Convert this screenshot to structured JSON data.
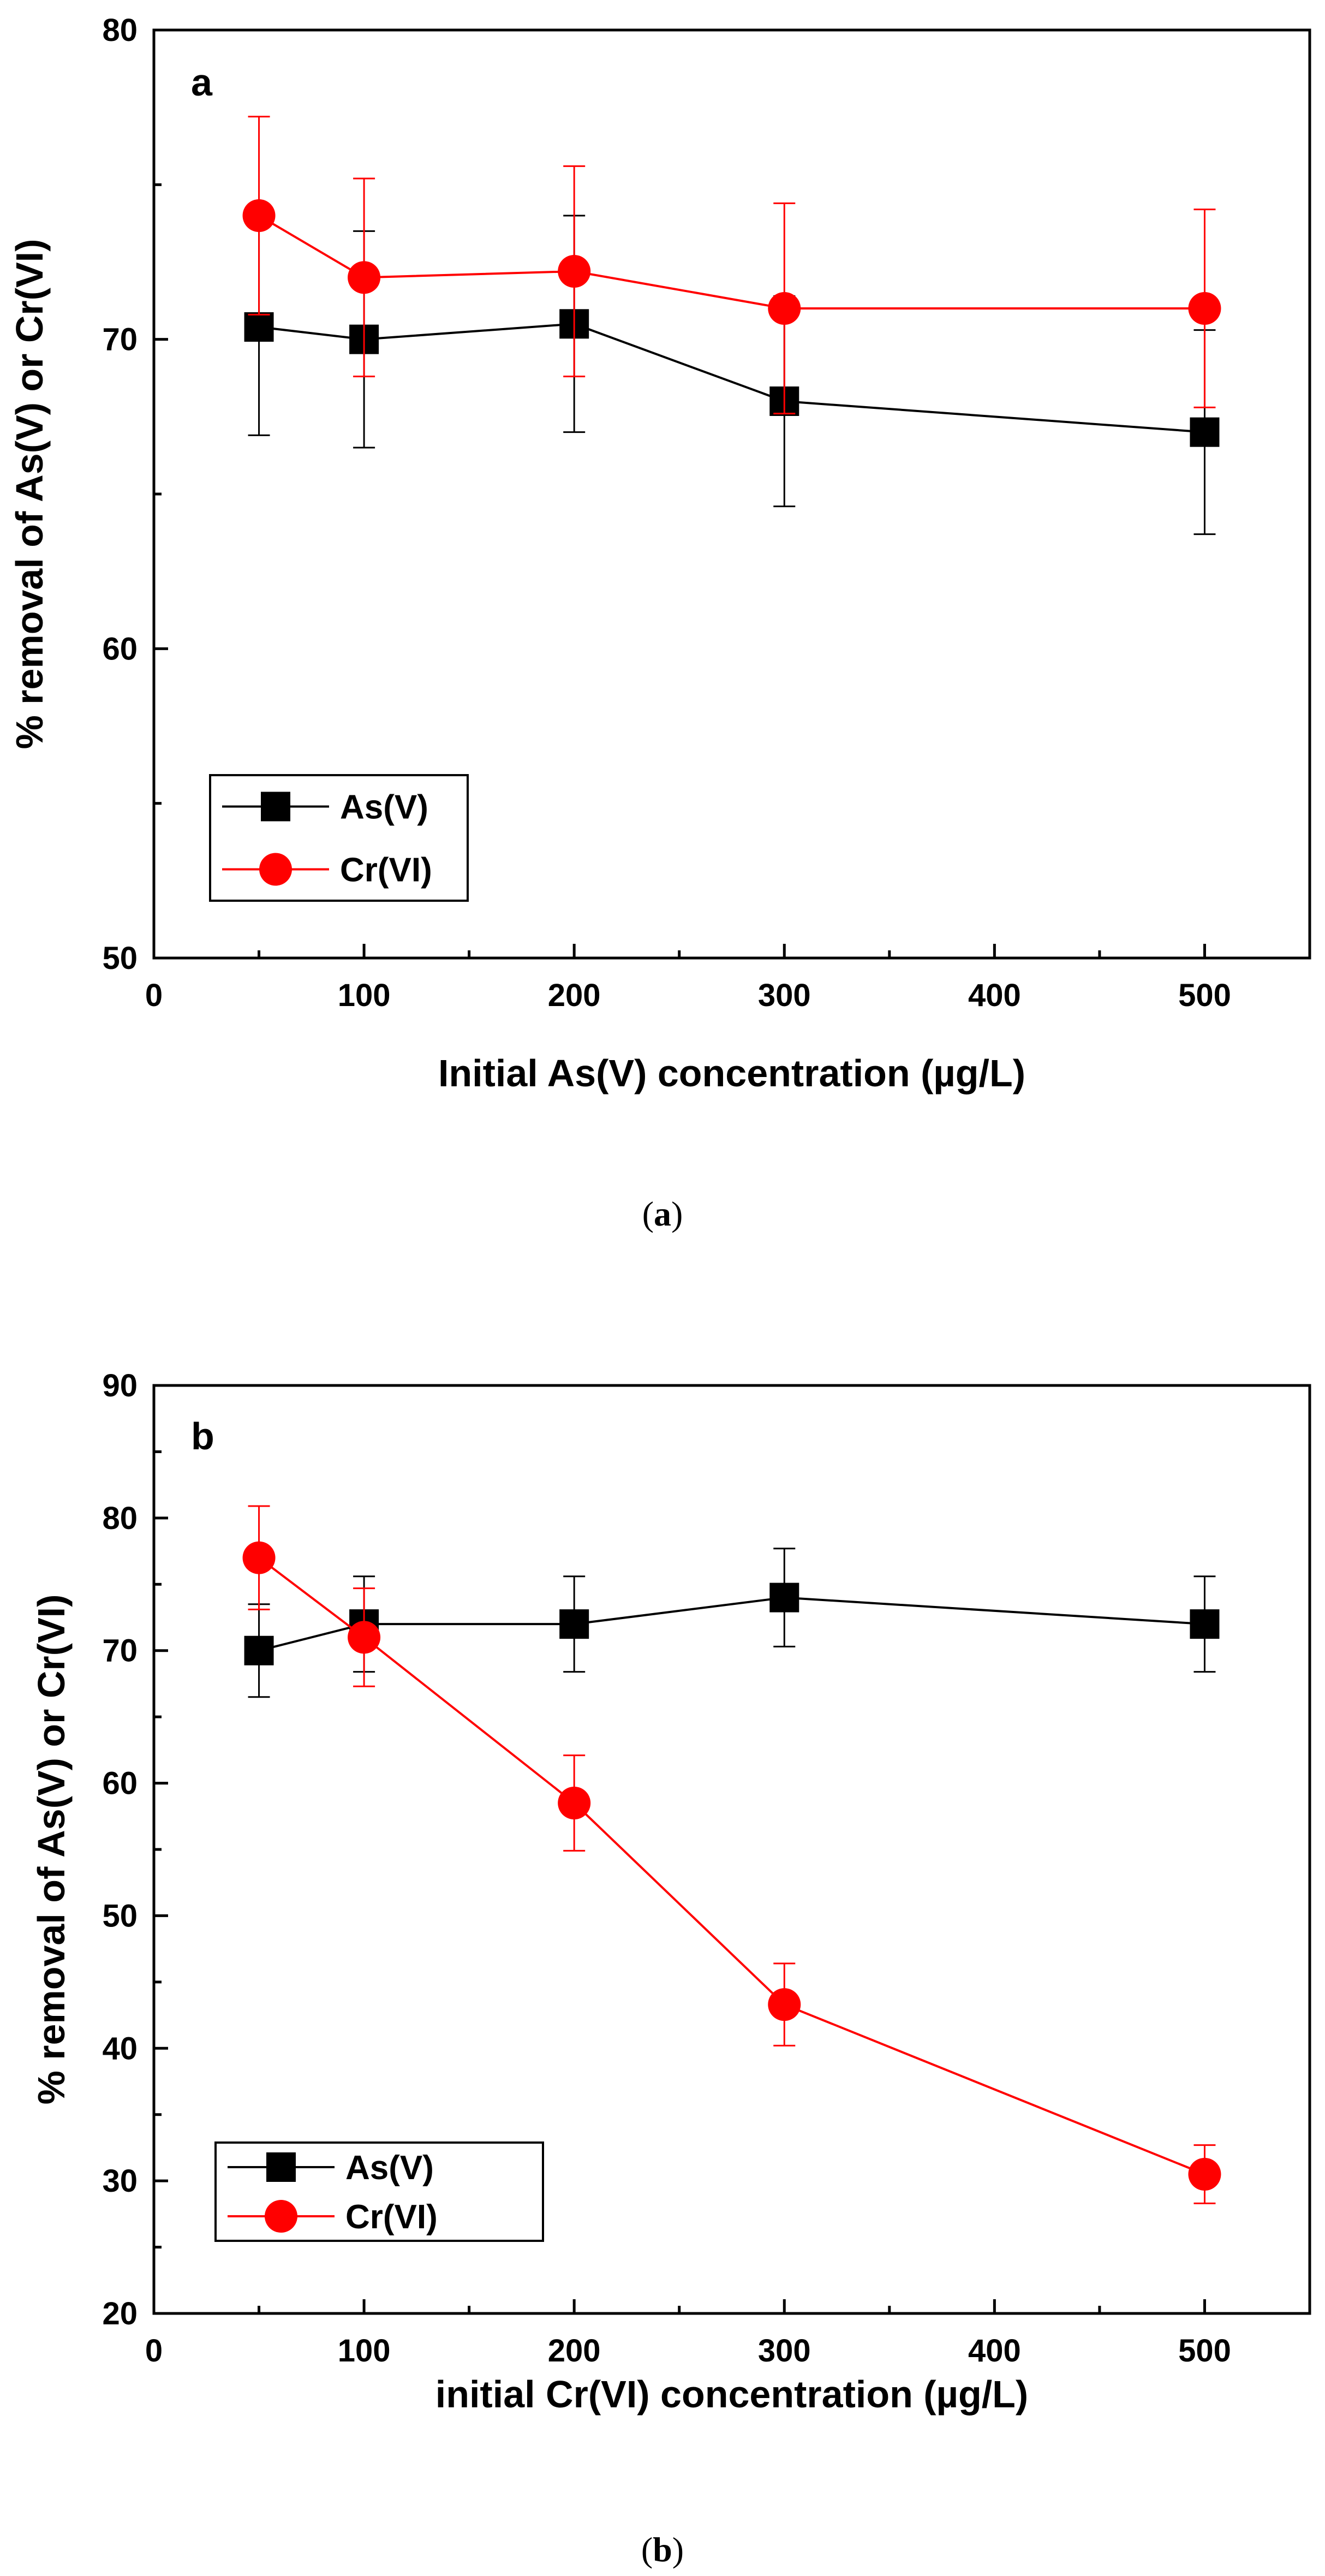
{
  "chart_data": [
    {
      "type": "line",
      "panel_label": "a",
      "caption_letter": "a",
      "xlabel": "Initial As(V) concentration (µg/L)",
      "ylabel": "% removal of As(V)  or Cr(VI)",
      "xlim": [
        0,
        550
      ],
      "ylim": [
        50,
        80
      ],
      "xticks": [
        0,
        100,
        200,
        300,
        400,
        500
      ],
      "yticks": [
        50,
        60,
        70,
        80
      ],
      "x_minor_step": 50,
      "y_minor_step": 5,
      "legend_position": "bottom-left",
      "grid": false,
      "series": [
        {
          "name": "As(V)",
          "color": "#000000",
          "marker": "square",
          "x": [
            50,
            100,
            200,
            300,
            500
          ],
          "y": [
            70.4,
            70.0,
            70.5,
            68.0,
            67.0
          ],
          "error": [
            3.5,
            3.5,
            3.5,
            3.4,
            3.3
          ]
        },
        {
          "name": "Cr(VI)",
          "color": "#ff0000",
          "marker": "circle",
          "x": [
            50,
            100,
            200,
            300,
            500
          ],
          "y": [
            74.0,
            72.0,
            72.2,
            71.0,
            71.0
          ],
          "error": [
            3.2,
            3.2,
            3.4,
            3.4,
            3.2
          ]
        }
      ]
    },
    {
      "type": "line",
      "panel_label": "b",
      "caption_letter": "b",
      "xlabel": "initial Cr(VI) concentration (µg/L)",
      "ylabel": "% removal of As(V) or Cr(VI)",
      "xlim": [
        0,
        550
      ],
      "ylim": [
        20,
        90
      ],
      "xticks": [
        0,
        100,
        200,
        300,
        400,
        500
      ],
      "yticks": [
        20,
        30,
        40,
        50,
        60,
        70,
        80,
        90
      ],
      "x_minor_step": 50,
      "y_minor_step": 5,
      "legend_position": "bottom-left",
      "grid": false,
      "series": [
        {
          "name": "As(V)",
          "color": "#000000",
          "marker": "square",
          "x": [
            50,
            100,
            200,
            300,
            500
          ],
          "y": [
            70.0,
            72.0,
            72.0,
            74.0,
            72.0
          ],
          "error": [
            3.5,
            3.6,
            3.6,
            3.7,
            3.6
          ]
        },
        {
          "name": "Cr(VI)",
          "color": "#ff0000",
          "marker": "circle",
          "x": [
            50,
            100,
            200,
            300,
            500
          ],
          "y": [
            77.0,
            71.0,
            58.5,
            43.3,
            30.5
          ],
          "error": [
            3.9,
            3.7,
            3.6,
            3.1,
            2.2
          ]
        }
      ]
    }
  ]
}
